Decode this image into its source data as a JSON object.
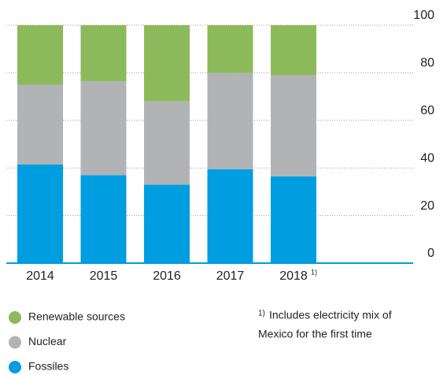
{
  "chart_data": {
    "type": "stacked_bar",
    "categories": [
      "2014",
      "2015",
      "2016",
      "2017",
      "2018"
    ],
    "series": [
      {
        "name": "Renewable sources",
        "color": "#8cba5a",
        "values": [
          25,
          23.5,
          32,
          20,
          21
        ]
      },
      {
        "name": "Nuclear",
        "color": "#b1b3b5",
        "values": [
          33.5,
          39.5,
          35,
          40.5,
          42.5
        ]
      },
      {
        "name": "Fossiles",
        "color": "#009de0",
        "values": [
          41.5,
          37,
          33,
          39.5,
          36.5
        ]
      }
    ],
    "ylim": [
      0,
      100
    ],
    "yticks": [
      0,
      20,
      40,
      60,
      80,
      100
    ],
    "grid": true,
    "footnote": {
      "marker": "1)",
      "text_lines": [
        "Includes electricity mix of",
        "Mexico for the first time"
      ]
    }
  }
}
